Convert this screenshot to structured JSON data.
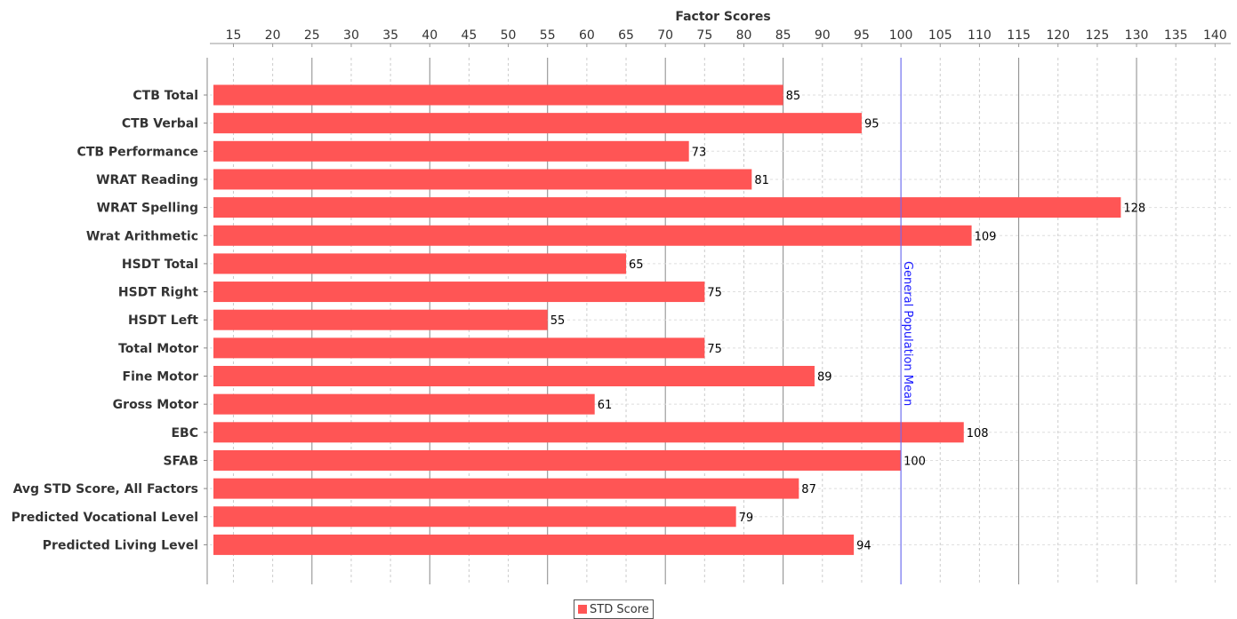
{
  "chart_data": {
    "type": "bar",
    "orientation": "horizontal",
    "title": "",
    "xlabel": "Factor Scores",
    "ylabel": "",
    "xlim": [
      12,
      142
    ],
    "x_ticks": [
      15,
      20,
      25,
      30,
      35,
      40,
      45,
      50,
      55,
      60,
      65,
      70,
      75,
      80,
      85,
      90,
      95,
      100,
      105,
      110,
      115,
      120,
      125,
      130,
      135,
      140
    ],
    "major_gridlines": [
      25,
      40,
      55,
      70,
      85,
      100,
      115,
      130
    ],
    "x_axis_position": "top",
    "grid": true,
    "categories": [
      "CTB Total",
      "CTB Verbal",
      "CTB Performance",
      "WRAT Reading",
      "WRAT Spelling",
      "Wrat Arithmetic",
      "HSDT Total",
      "HSDT Right",
      "HSDT Left",
      "Total Motor",
      "Fine Motor",
      "Gross Motor",
      "EBC",
      "SFAB",
      "Avg STD Score, All Factors",
      "Predicted Vocational Level",
      "Predicted Living Level"
    ],
    "series": [
      {
        "name": "STD Score",
        "color": "#ff5555",
        "values": [
          85,
          95,
          73,
          81,
          128,
          109,
          65,
          75,
          55,
          75,
          89,
          61,
          108,
          100,
          87,
          79,
          94
        ]
      }
    ],
    "markers": [
      {
        "value": 100,
        "label": "General Population Mean",
        "color": "#6666ff"
      }
    ],
    "legend": {
      "position": "bottom",
      "entries": [
        "STD Score"
      ]
    }
  }
}
